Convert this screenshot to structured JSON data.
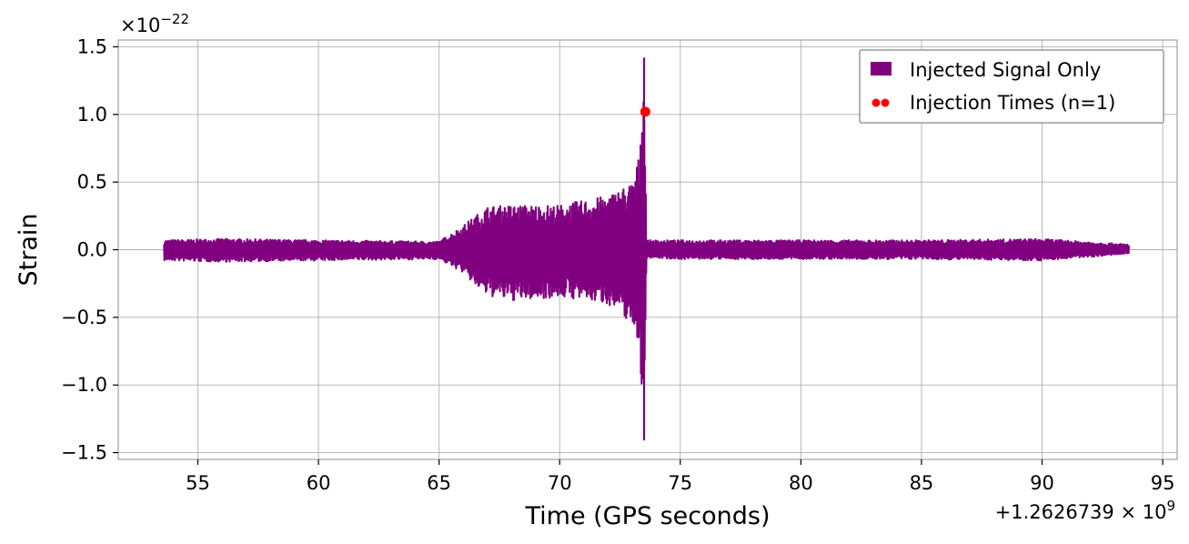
{
  "chart_data": {
    "type": "line",
    "xlabel": "Time (GPS seconds)",
    "ylabel": "Strain",
    "x_offset_label": "+1.2626739 × 10",
    "x_offset_exp": "9",
    "y_scale_label": "×10",
    "y_scale_exp": "−22",
    "xlim": [
      51.7,
      95.6
    ],
    "ylim": [
      -1.55,
      1.55
    ],
    "x_ticks": [
      55,
      60,
      65,
      70,
      75,
      80,
      85,
      90,
      95
    ],
    "x_tick_labels": [
      "55",
      "60",
      "65",
      "70",
      "75",
      "80",
      "85",
      "90",
      "95"
    ],
    "y_ticks": [
      1.5,
      1.0,
      0.5,
      0.0,
      -0.5,
      -1.0,
      -1.5
    ],
    "y_tick_labels": [
      "1.5",
      "1.0",
      "0.5",
      "0.0",
      "−0.5",
      "−1.0",
      "−1.5"
    ],
    "grid": true,
    "legend_position": "top-right",
    "series": [
      {
        "name": "Injected Signal Only",
        "color": "#800080",
        "envelope": {
          "x": [
            53.6,
            56.0,
            60.0,
            65.0,
            66.0,
            66.5,
            67.0,
            68.0,
            70.0,
            72.0,
            73.0,
            73.3,
            73.5,
            73.6,
            73.65,
            73.7,
            75.0,
            80.0,
            85.0,
            90.0,
            93.6
          ],
          "y_max": [
            0.07,
            0.08,
            0.07,
            0.06,
            0.18,
            0.25,
            0.32,
            0.33,
            0.33,
            0.4,
            0.5,
            0.7,
            1.42,
            0.05,
            0.07,
            0.07,
            0.07,
            0.07,
            0.07,
            0.08,
            0.04
          ],
          "y_min": [
            -0.08,
            -0.09,
            -0.08,
            -0.07,
            -0.17,
            -0.27,
            -0.34,
            -0.38,
            -0.35,
            -0.4,
            -0.55,
            -0.7,
            -1.41,
            -0.06,
            -0.06,
            -0.06,
            -0.07,
            -0.07,
            -0.07,
            -0.08,
            -0.03
          ]
        }
      },
      {
        "name": "Injection Times (n=1)",
        "color": "#ff0000",
        "points": [
          {
            "x": 73.55,
            "y": 1.02
          }
        ]
      }
    ]
  }
}
